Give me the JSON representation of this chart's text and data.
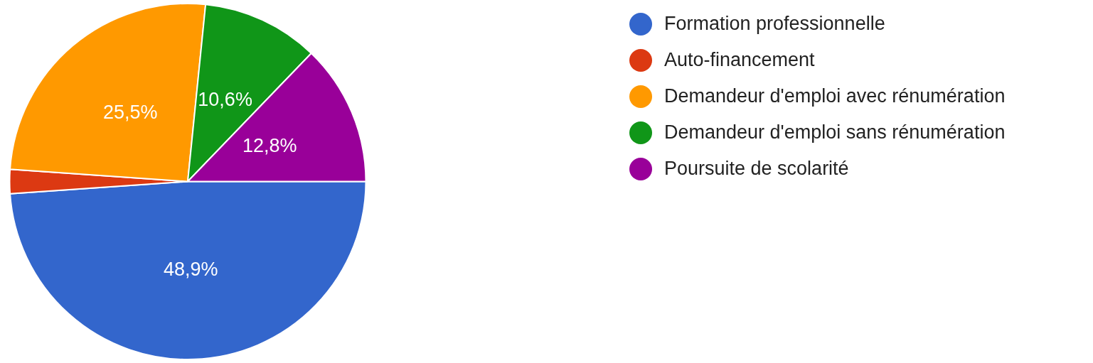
{
  "chart_data": {
    "type": "pie",
    "categories": [
      "Formation professionnelle",
      "Auto-financement",
      "Demandeur d'emploi avec rénumération",
      "Demandeur d'emploi sans rénumération",
      "Poursuite de scolarité"
    ],
    "values": [
      48.9,
      2.2,
      25.5,
      10.6,
      12.8
    ],
    "colors": [
      "#3366cc",
      "#dc3912",
      "#ff9900",
      "#109618",
      "#990099"
    ],
    "value_labels": [
      "48,9%",
      null,
      "25,5%",
      "10,6%",
      "12,8%"
    ],
    "legend": "top right"
  }
}
